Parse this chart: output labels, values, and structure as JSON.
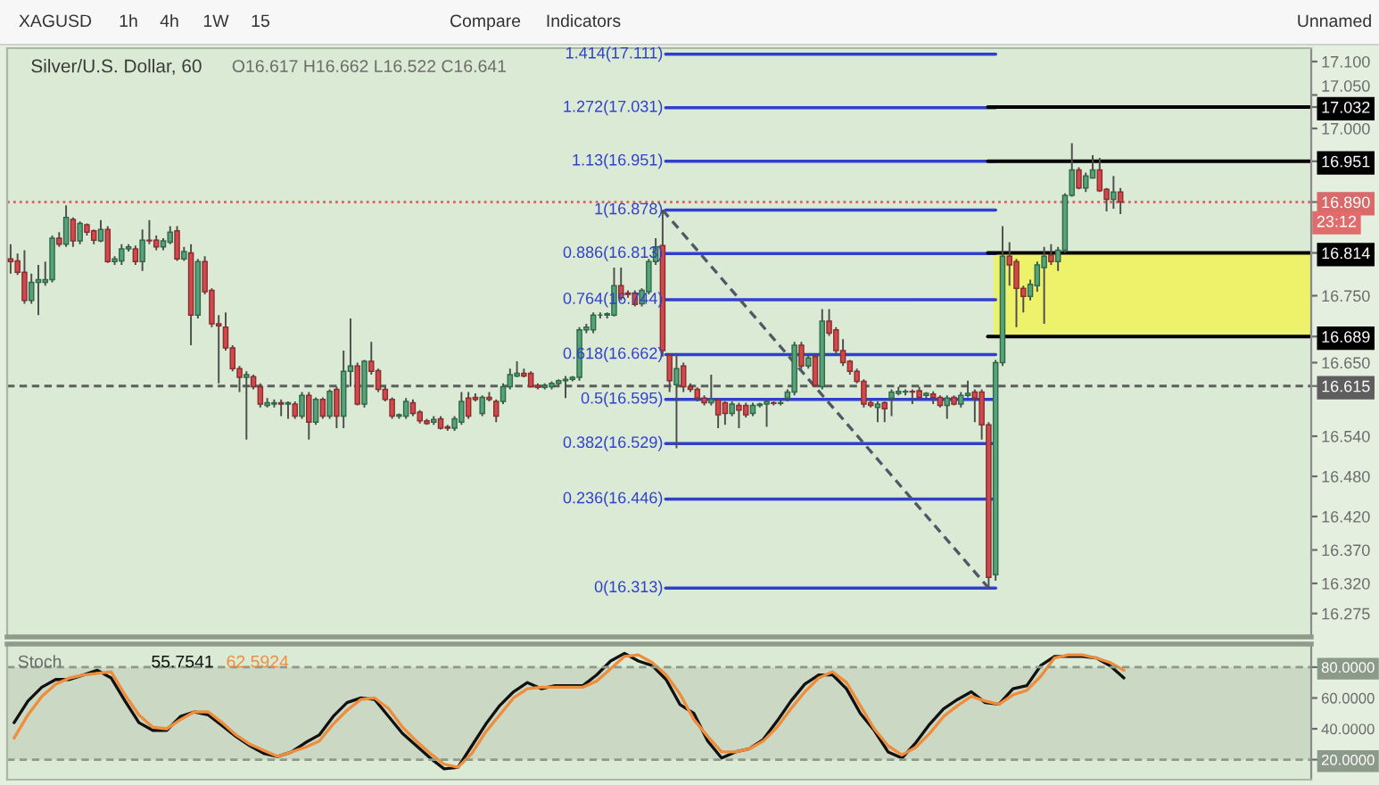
{
  "chart_data": [
    {
      "type": "other",
      "annotations": [
        "XAGUSD",
        "1h",
        "4h",
        "1W",
        "15",
        "Compare",
        "Indicators",
        "Unnamed"
      ]
    },
    {
      "type": "candlestick",
      "title": "Silver/U.S. Dollar, 60",
      "annotations": [
        "O16.617 H16.662 L16.522 C16.641",
        {
          "text": "23:12",
          "y": 16.859
        }
      ],
      "categories": [
        null,
        null,
        null,
        null,
        null,
        null,
        null,
        null,
        null,
        null,
        null,
        null,
        null,
        null,
        null,
        null,
        null,
        null,
        null,
        null,
        null,
        null,
        null,
        null,
        null,
        null,
        null,
        null,
        null,
        null,
        null,
        null,
        null,
        null,
        null,
        null,
        null,
        null,
        null,
        null,
        null,
        null,
        null,
        null,
        null,
        null,
        null,
        null,
        null,
        null,
        null,
        null,
        null,
        null,
        null,
        null,
        null,
        null,
        null,
        null,
        null,
        null,
        null,
        null,
        null,
        null,
        null,
        null,
        null,
        null,
        null,
        null,
        null,
        null,
        null,
        null,
        null,
        null,
        null,
        null,
        null,
        null,
        null,
        null,
        null,
        null,
        null,
        null,
        null,
        null,
        null,
        null,
        null,
        null,
        null,
        null,
        null,
        null,
        null,
        null,
        null,
        null,
        null,
        null,
        null,
        null,
        null,
        null,
        null,
        null,
        null,
        null,
        null,
        null,
        null,
        null,
        null,
        null,
        null,
        null,
        null,
        null,
        null,
        null,
        null,
        null,
        null,
        null,
        null,
        null,
        null,
        null,
        null,
        null,
        null,
        null,
        null,
        null,
        null,
        null,
        null,
        null,
        null,
        null,
        null,
        null,
        null,
        null,
        null,
        null,
        null,
        null,
        null,
        null,
        null,
        null,
        null,
        null,
        null,
        null,
        null,
        null,
        null,
        null,
        null,
        null,
        null,
        null,
        null,
        null,
        null,
        null,
        null,
        null,
        null,
        null,
        null,
        null,
        null,
        null,
        null,
        null,
        null,
        null,
        null,
        null,
        null,
        null
      ],
      "ohlc": [
        [
          16.805,
          16.827,
          16.783,
          16.801
        ],
        [
          16.802,
          16.813,
          16.781,
          16.785
        ],
        [
          16.785,
          16.818,
          16.738,
          16.743
        ],
        [
          16.743,
          16.783,
          16.738,
          16.77
        ],
        [
          16.77,
          16.796,
          16.721,
          16.774
        ],
        [
          16.77,
          16.801,
          16.765,
          16.774
        ],
        [
          16.774,
          16.84,
          16.77,
          16.836
        ],
        [
          16.836,
          16.845,
          16.823,
          16.827
        ],
        [
          16.827,
          16.885,
          16.823,
          16.867
        ],
        [
          16.864,
          16.867,
          16.823,
          16.832
        ],
        [
          16.832,
          16.861,
          16.827,
          16.858
        ],
        [
          16.856,
          16.858,
          16.84,
          16.845
        ],
        [
          16.847,
          16.849,
          16.827,
          16.833
        ],
        [
          16.832,
          16.863,
          16.83,
          16.849
        ],
        [
          16.849,
          16.854,
          16.799,
          16.801
        ],
        [
          16.801,
          16.809,
          16.796,
          16.805
        ],
        [
          16.802,
          16.827,
          16.796,
          16.82
        ],
        [
          16.82,
          16.827,
          16.816,
          16.823
        ],
        [
          16.82,
          16.825,
          16.796,
          16.801
        ],
        [
          16.801,
          16.849,
          16.787,
          16.833
        ],
        [
          16.833,
          16.863,
          16.827,
          16.832
        ],
        [
          16.833,
          16.84,
          16.818,
          16.823
        ],
        [
          16.823,
          16.836,
          16.818,
          16.832
        ],
        [
          16.83,
          16.854,
          16.827,
          16.845
        ],
        [
          16.847,
          16.854,
          16.802,
          16.805
        ],
        [
          16.805,
          16.823,
          16.802,
          16.816
        ],
        [
          16.814,
          16.827,
          16.676,
          16.721
        ],
        [
          16.721,
          16.805,
          16.716,
          16.801
        ],
        [
          16.801,
          16.809,
          16.752,
          16.756
        ],
        [
          16.758,
          16.761,
          16.703,
          16.708
        ],
        [
          16.708,
          16.721,
          16.619,
          16.705
        ],
        [
          16.703,
          16.725,
          16.668,
          16.672
        ],
        [
          16.672,
          16.676,
          16.637,
          16.641
        ],
        [
          16.641,
          16.645,
          16.606,
          16.628
        ],
        [
          16.628,
          16.637,
          16.535,
          16.632
        ],
        [
          16.629,
          16.632,
          16.61,
          16.614
        ],
        [
          16.614,
          16.619,
          16.583,
          16.588
        ],
        [
          16.586,
          16.597,
          16.583,
          16.59
        ],
        [
          16.588,
          16.595,
          16.583,
          16.59
        ],
        [
          16.59,
          16.595,
          16.57,
          16.588
        ],
        [
          16.588,
          16.592,
          16.566,
          16.59
        ],
        [
          16.588,
          16.592,
          16.566,
          16.57
        ],
        [
          16.57,
          16.606,
          16.566,
          16.601
        ],
        [
          16.601,
          16.606,
          16.535,
          16.561
        ],
        [
          16.561,
          16.598,
          16.557,
          16.595
        ],
        [
          16.595,
          16.598,
          16.566,
          16.57
        ],
        [
          16.57,
          16.61,
          16.566,
          16.607
        ],
        [
          16.61,
          16.614,
          16.552,
          16.57
        ],
        [
          16.57,
          16.668,
          16.552,
          16.637
        ],
        [
          16.637,
          16.716,
          16.614,
          16.645
        ],
        [
          16.645,
          16.65,
          16.586,
          16.588
        ],
        [
          16.588,
          16.654,
          16.583,
          16.652
        ],
        [
          16.652,
          16.681,
          16.632,
          16.637
        ],
        [
          16.638,
          16.641,
          16.606,
          16.61
        ],
        [
          16.61,
          16.614,
          16.592,
          16.595
        ],
        [
          16.595,
          16.598,
          16.566,
          16.57
        ],
        [
          16.57,
          16.574,
          16.566,
          16.572
        ],
        [
          16.57,
          16.597,
          16.566,
          16.592
        ],
        [
          16.59,
          16.595,
          16.57,
          16.574
        ],
        [
          16.576,
          16.579,
          16.559,
          16.563
        ],
        [
          16.563,
          16.566,
          16.557,
          16.559
        ],
        [
          16.561,
          16.57,
          16.557,
          16.565
        ],
        [
          16.566,
          16.57,
          16.55,
          16.552
        ],
        [
          16.554,
          16.557,
          16.548,
          16.552
        ],
        [
          16.552,
          16.57,
          16.548,
          16.566
        ],
        [
          16.561,
          16.606,
          16.557,
          16.592
        ],
        [
          16.597,
          16.606,
          16.566,
          16.57
        ],
        [
          16.598,
          16.604,
          16.592,
          16.595
        ],
        [
          16.574,
          16.601,
          16.57,
          16.598
        ],
        [
          16.598,
          16.606,
          16.592,
          16.595
        ],
        [
          16.592,
          16.595,
          16.561,
          16.57
        ],
        [
          16.592,
          16.619,
          16.588,
          16.614
        ],
        [
          16.614,
          16.641,
          16.61,
          16.632
        ],
        [
          16.63,
          16.652,
          16.628,
          16.634
        ],
        [
          16.634,
          16.641,
          16.628,
          16.63
        ],
        [
          16.634,
          16.637,
          16.613,
          16.614
        ],
        [
          16.616,
          16.619,
          16.61,
          16.613
        ],
        [
          16.613,
          16.619,
          16.61,
          16.616
        ],
        [
          16.614,
          16.622,
          16.61,
          16.619
        ],
        [
          16.619,
          16.625,
          16.616,
          16.623
        ],
        [
          16.623,
          16.63,
          16.597,
          16.625
        ],
        [
          16.625,
          16.63,
          16.622,
          16.628
        ],
        [
          16.628,
          16.703,
          16.623,
          16.699
        ],
        [
          16.699,
          16.708,
          16.694,
          16.703
        ],
        [
          16.699,
          16.725,
          16.694,
          16.721
        ],
        [
          16.721,
          16.725,
          16.716,
          16.721
        ],
        [
          16.721,
          16.725,
          16.716,
          16.723
        ],
        [
          16.721,
          16.792,
          16.719,
          16.765
        ],
        [
          16.765,
          16.792,
          16.743,
          16.747
        ],
        [
          16.754,
          16.758,
          16.747,
          16.752
        ],
        [
          16.754,
          16.758,
          16.734,
          16.737
        ],
        [
          16.738,
          16.761,
          16.734,
          16.758
        ],
        [
          16.756,
          16.805,
          16.752,
          16.801
        ],
        [
          16.801,
          16.836,
          16.796,
          16.823
        ],
        [
          16.825,
          16.878,
          16.659,
          16.668
        ],
        [
          16.661,
          16.663,
          16.606,
          16.623
        ],
        [
          16.617,
          16.662,
          16.522,
          16.641
        ],
        [
          16.645,
          16.65,
          16.606,
          16.614
        ],
        [
          16.614,
          16.619,
          16.606,
          16.61
        ],
        [
          16.61,
          16.613,
          16.592,
          16.597
        ],
        [
          16.597,
          16.601,
          16.586,
          16.59
        ],
        [
          16.59,
          16.632,
          16.586,
          16.595
        ],
        [
          16.594,
          16.597,
          16.552,
          16.572
        ],
        [
          16.59,
          16.592,
          16.557,
          16.574
        ],
        [
          16.574,
          16.592,
          16.57,
          16.588
        ],
        [
          16.586,
          16.59,
          16.552,
          16.579
        ],
        [
          16.586,
          16.59,
          16.568,
          16.572
        ],
        [
          16.574,
          16.59,
          16.57,
          16.586
        ],
        [
          16.586,
          16.59,
          16.583,
          16.588
        ],
        [
          16.588,
          16.595,
          16.554,
          16.592
        ],
        [
          16.59,
          16.592,
          16.586,
          16.589
        ],
        [
          16.589,
          16.595,
          16.586,
          16.59
        ],
        [
          16.597,
          16.61,
          16.592,
          16.606
        ],
        [
          16.606,
          16.681,
          16.601,
          16.676
        ],
        [
          16.676,
          16.681,
          16.641,
          16.645
        ],
        [
          16.645,
          16.661,
          16.641,
          16.657
        ],
        [
          16.659,
          16.663,
          16.614,
          16.616
        ],
        [
          16.614,
          16.73,
          16.61,
          16.712
        ],
        [
          16.712,
          16.73,
          16.69,
          16.694
        ],
        [
          16.699,
          16.703,
          16.663,
          16.668
        ],
        [
          16.668,
          16.685,
          16.645,
          16.65
        ],
        [
          16.652,
          16.654,
          16.632,
          16.637
        ],
        [
          16.637,
          16.641,
          16.619,
          16.622
        ],
        [
          16.622,
          16.625,
          16.583,
          16.588
        ],
        [
          16.59,
          16.595,
          16.583,
          16.586
        ],
        [
          16.583,
          16.592,
          16.561,
          16.588
        ],
        [
          16.59,
          16.592,
          16.561,
          16.581
        ],
        [
          16.597,
          16.61,
          16.57,
          16.606
        ],
        [
          16.604,
          16.614,
          16.601,
          16.607
        ],
        [
          16.606,
          16.61,
          16.601,
          16.607
        ],
        [
          16.607,
          16.61,
          16.588,
          16.606
        ],
        [
          16.608,
          16.614,
          16.595,
          16.598
        ],
        [
          16.601,
          16.606,
          16.597,
          16.604
        ],
        [
          16.603,
          16.607,
          16.588,
          16.598
        ],
        [
          16.598,
          16.601,
          16.583,
          16.586
        ],
        [
          16.586,
          16.601,
          16.566,
          16.597
        ],
        [
          16.598,
          16.601,
          16.586,
          16.588
        ],
        [
          16.588,
          16.606,
          16.583,
          16.601
        ],
        [
          16.601,
          16.623,
          16.598,
          16.604
        ],
        [
          16.606,
          16.61,
          16.561,
          16.597
        ],
        [
          16.606,
          16.61,
          16.535,
          16.557
        ],
        [
          16.557,
          16.561,
          16.313,
          16.329
        ],
        [
          16.333,
          16.654,
          16.324,
          16.65
        ],
        [
          16.65,
          16.854,
          16.645,
          16.809
        ],
        [
          16.809,
          16.83,
          16.765,
          16.796
        ],
        [
          16.801,
          16.805,
          16.703,
          16.761
        ],
        [
          16.761,
          16.765,
          16.725,
          16.749
        ],
        [
          16.749,
          16.774,
          16.743,
          16.767
        ],
        [
          16.765,
          16.801,
          16.756,
          16.796
        ],
        [
          16.792,
          16.823,
          16.708,
          16.809
        ],
        [
          16.811,
          16.827,
          16.796,
          16.801
        ],
        [
          16.801,
          16.823,
          16.787,
          16.818
        ],
        [
          16.818,
          16.903,
          16.814,
          16.9
        ],
        [
          16.9,
          16.978,
          16.898,
          16.938
        ],
        [
          16.938,
          16.942,
          16.909,
          16.911
        ],
        [
          16.911,
          16.934,
          16.905,
          16.929
        ],
        [
          16.926,
          16.96,
          16.925,
          16.938
        ],
        [
          16.938,
          16.956,
          16.905,
          16.907
        ],
        [
          16.909,
          16.911,
          16.876,
          16.894
        ],
        [
          16.894,
          16.929,
          16.88,
          16.905
        ],
        [
          16.905,
          16.911,
          16.872,
          16.89
        ],
        null,
        null,
        null,
        null,
        null,
        null,
        null,
        null,
        null,
        null,
        null,
        null,
        null,
        null,
        null,
        null,
        null,
        null,
        null,
        null,
        null,
        null,
        null,
        null,
        null,
        null,
        null
      ],
      "series": [
        {
          "type": "line",
          "color": "#4f5866",
          "line_style": "dashed",
          "values": [
            null,
            null,
            null,
            null,
            null,
            null,
            null,
            null,
            null,
            null,
            null,
            null,
            null,
            null,
            null,
            null,
            null,
            null,
            null,
            null,
            null,
            null,
            null,
            null,
            null,
            null,
            null,
            null,
            null,
            null,
            null,
            null,
            null,
            null,
            null,
            null,
            null,
            null,
            null,
            null,
            null,
            null,
            null,
            null,
            null,
            null,
            null,
            null,
            null,
            null,
            null,
            null,
            null,
            null,
            null,
            null,
            null,
            null,
            null,
            null,
            null,
            null,
            null,
            null,
            null,
            null,
            null,
            null,
            null,
            null,
            null,
            null,
            null,
            null,
            null,
            null,
            null,
            null,
            null,
            null,
            null,
            null,
            null,
            null,
            null,
            null,
            null,
            null,
            null,
            null,
            null,
            null,
            null,
            null,
            16.878,
            null,
            null,
            null,
            null,
            null,
            null,
            null,
            null,
            null,
            null,
            null,
            null,
            null,
            null,
            null,
            null,
            null,
            null,
            null,
            null,
            null,
            null,
            null,
            null,
            null,
            null,
            null,
            null,
            null,
            null,
            null,
            null,
            null,
            null,
            null,
            null,
            null,
            null,
            null,
            null,
            null,
            null,
            null,
            null,
            null,
            null,
            16.313,
            null,
            null,
            null,
            null,
            null,
            null,
            null,
            null,
            null,
            null,
            null,
            null,
            null,
            null,
            null,
            null,
            null,
            null,
            null,
            null,
            null,
            null,
            null,
            null,
            null,
            null,
            null,
            null,
            null,
            null,
            null,
            null,
            null,
            null,
            null,
            null,
            null,
            null,
            null,
            null,
            null,
            null,
            null,
            null,
            null,
            null
          ]
        }
      ],
      "ylim": [
        16.24,
        17.12
      ],
      "yticks": [
        16.275,
        {
          "value": 16.32,
          "label": "16.320"
        },
        {
          "value": 16.37,
          "label": "16.370"
        },
        {
          "value": 16.42,
          "label": "16.420"
        },
        {
          "value": 16.48,
          "label": "16.480"
        },
        {
          "value": 16.54,
          "label": "16.540"
        },
        16.615,
        {
          "value": 16.65,
          "label": "16.650"
        },
        16.689,
        {
          "value": 16.75,
          "label": "16.750"
        },
        16.814,
        {
          "value": 16.89,
          "label": "16.890"
        },
        16.951,
        {
          "value": 17.0,
          "label": "17.000"
        },
        17.032,
        {
          "value": 17.05,
          "label": "17.050"
        },
        {
          "value": 17.1,
          "label": "17.100"
        }
      ],
      "ref_lines": [
        {
          "axis": "y",
          "value": 17.111,
          "label": "1.414(17.111)",
          "color": "#2f3fce"
        },
        {
          "axis": "y",
          "value": 17.031,
          "label": "1.272(17.031)",
          "color": "#2f3fce"
        },
        {
          "axis": "y",
          "value": 16.951,
          "label": "1.13(16.951)",
          "color": "#2f3fce"
        },
        {
          "axis": "y",
          "value": 16.878,
          "label": "1(16.878)",
          "color": "#2f3fce"
        },
        {
          "axis": "y",
          "value": 16.813,
          "label": "0.886(16.813)",
          "color": "#2f3fce"
        },
        {
          "axis": "y",
          "value": 16.744,
          "label": "0.764(16.744)",
          "color": "#2f3fce"
        },
        {
          "axis": "y",
          "value": 16.662,
          "label": "0.618(16.662)",
          "color": "#2f3fce"
        },
        {
          "axis": "y",
          "value": 16.595,
          "label": "0.5(16.595)",
          "color": "#2f3fce"
        },
        {
          "axis": "y",
          "value": 16.529,
          "label": "0.382(16.529)",
          "color": "#2f3fce"
        },
        {
          "axis": "y",
          "value": 16.446,
          "label": "0.236(16.446)",
          "color": "#2f3fce"
        },
        {
          "axis": "y",
          "value": 16.313,
          "label": "0(16.313)",
          "color": "#2f3fce"
        },
        {
          "axis": "y",
          "value": 17.032,
          "color": "#000000"
        },
        {
          "axis": "y",
          "value": 16.951,
          "color": "#000000"
        },
        {
          "axis": "y",
          "value": 16.814,
          "color": "#000000"
        },
        {
          "axis": "y",
          "value": 16.689,
          "color": "#000000"
        },
        {
          "axis": "y",
          "value": 16.89,
          "color": "#d96a6a",
          "line_style": "dotted"
        },
        {
          "axis": "y",
          "value": 16.615,
          "color": "#5e5e5e",
          "line_style": "dashed"
        }
      ],
      "bands": [
        {
          "axis": "y",
          "from": 16.689,
          "to": 16.814,
          "color": "#eef26b"
        }
      ]
    },
    {
      "type": "line",
      "annotations": [
        "Stoch",
        "55.7541",
        "62.5924"
      ],
      "categories": [
        null,
        null,
        null,
        null,
        null,
        null,
        null,
        null,
        null,
        null,
        null,
        null,
        null,
        null,
        null,
        null,
        null,
        null,
        null,
        null,
        null,
        null,
        null,
        null,
        null,
        null,
        null,
        null,
        null,
        null,
        null,
        null,
        null,
        null,
        null,
        null,
        null,
        null,
        null,
        null,
        null,
        null,
        null,
        null,
        null,
        null,
        null,
        null,
        null,
        null,
        null,
        null,
        null,
        null,
        null,
        null,
        null,
        null,
        null,
        null,
        null,
        null,
        null,
        null,
        null,
        null,
        null,
        null,
        null,
        null,
        null,
        null,
        null,
        null,
        null,
        null,
        null,
        null,
        null,
        null,
        null,
        null,
        null,
        null,
        null,
        null,
        null,
        null,
        null,
        null,
        null,
        null,
        null,
        null
      ],
      "series": [
        {
          "color": "#111111",
          "values": [
            44,
            58,
            67,
            72,
            72,
            75,
            78,
            73,
            58,
            44,
            39,
            39,
            48,
            51,
            49,
            42,
            35,
            29,
            24,
            22,
            25,
            31,
            36,
            48,
            57,
            60,
            59,
            48,
            37,
            29,
            21,
            14,
            15,
            29,
            43,
            55,
            64,
            70,
            66,
            68,
            68,
            68,
            75,
            84,
            89,
            84,
            81,
            72,
            55.7541,
            50,
            32,
            21,
            25,
            27,
            33,
            45,
            58,
            69,
            75,
            75,
            66,
            50,
            39,
            25,
            21,
            31,
            43,
            53,
            59,
            64,
            57,
            56,
            66,
            68,
            81,
            87,
            87,
            87,
            86,
            81,
            73,
            null,
            null,
            null,
            null,
            null,
            null,
            null,
            null,
            null,
            null,
            null,
            null,
            null
          ]
        },
        {
          "color": "#ef8d3c",
          "values": [
            34,
            49,
            61,
            69,
            73,
            75,
            76,
            77,
            62,
            49,
            41,
            40,
            46,
            51,
            51,
            44,
            36,
            30,
            26,
            22,
            25,
            28,
            32,
            43,
            52,
            59,
            60,
            53,
            41,
            32,
            24,
            17,
            15,
            24,
            38,
            49,
            60,
            66,
            67,
            67,
            67,
            67,
            71,
            79,
            87,
            88,
            83,
            75,
            62.5924,
            46,
            35,
            25,
            25,
            27,
            32,
            41,
            53,
            64,
            73,
            77,
            70,
            55,
            40,
            29,
            23,
            28,
            37,
            48,
            55,
            61,
            58,
            56,
            62,
            65,
            74,
            86,
            88,
            88,
            86,
            83,
            78,
            null,
            null,
            null,
            null,
            null,
            null,
            null,
            null,
            null,
            null,
            null,
            null,
            null
          ]
        }
      ],
      "ylim": [
        7,
        95
      ],
      "yticks": [
        {
          "value": 20,
          "label": "20.0000"
        },
        {
          "value": 40,
          "label": "40.0000"
        },
        {
          "value": 60,
          "label": "60.0000"
        },
        {
          "value": 80,
          "label": "80.0000"
        }
      ],
      "ref_lines": [
        {
          "axis": "y",
          "value": 80,
          "color": "#8c9a8a",
          "line_style": "dashed"
        },
        {
          "axis": "y",
          "value": 20,
          "color": "#8c9a8a",
          "line_style": "dashed"
        }
      ],
      "bands": [
        {
          "axis": "y",
          "from": 20,
          "to": 80,
          "color": "#cbd8c4"
        }
      ]
    }
  ]
}
